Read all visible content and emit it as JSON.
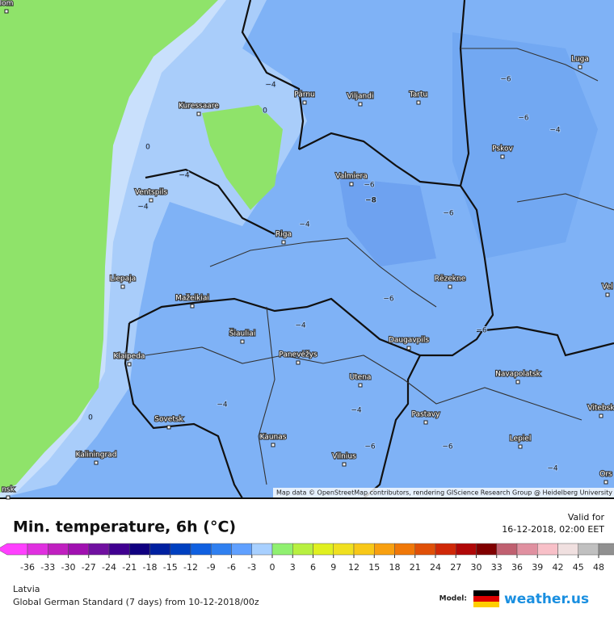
{
  "map": {
    "attribution": "Map data © OpenStreetMap contributors, rendering GIScience Research Group @ Heidelberg University",
    "cities": [
      "lom",
      "Pärnu",
      "Viljandi",
      "Tartu",
      "Kuressaare",
      "Luga",
      "Pskov",
      "Valmiera",
      "Ventspils",
      "Riga",
      "Liepaja",
      "Rēzekne",
      "Mažeikiai",
      "Šiauliai",
      "Panevėžys",
      "Klaipeda",
      "Daugavpils",
      "Navapolatsk",
      "Utena",
      "Vitebsk",
      "Sovetsk",
      "Pastavy",
      "Kaunas",
      "Lepiel",
      "Kaliningrad",
      "Vilnius",
      "Vel",
      "Ors",
      "nsk"
    ],
    "contour_labels": [
      "−4",
      "0",
      "0",
      "−4",
      "−6",
      "−8",
      "−4",
      "−4",
      "−6",
      "−6",
      "−6",
      "−4",
      "−6",
      "−4",
      "−6",
      "−4",
      "−4",
      "0",
      "−6",
      "−6",
      "−4"
    ]
  },
  "legend": {
    "title": "Min. temperature, 6h (°C)",
    "valid_label": "Valid for",
    "valid_time": "16-12-2018, 02:00 EET",
    "ticks": [
      -36,
      -33,
      -30,
      -27,
      -24,
      -21,
      -18,
      -15,
      -12,
      -9,
      -6,
      -3,
      0,
      3,
      6,
      9,
      12,
      15,
      18,
      21,
      24,
      27,
      30,
      33,
      36,
      39,
      42,
      45,
      48
    ],
    "colors": [
      "#ff40ff",
      "#e030e0",
      "#c020c0",
      "#a010b0",
      "#7010a0",
      "#400090",
      "#100080",
      "#0020a0",
      "#0040c0",
      "#1060e0",
      "#3080f0",
      "#60a0ff",
      "#a8d0ff",
      "#90f070",
      "#b8f040",
      "#e0f020",
      "#f0e020",
      "#f8c818",
      "#f8a010",
      "#f07808",
      "#e05008",
      "#d02808",
      "#b00808",
      "#800000",
      "#c06070",
      "#e090a0",
      "#f8c0c8",
      "#f0e0e0",
      "#c0c0c0",
      "#909090"
    ]
  },
  "footer": {
    "region": "Latvia",
    "model_run": "Global German Standard (7 days) from 10-12-2018/00z",
    "model_label": "Model:",
    "brand": "weather.us"
  }
}
